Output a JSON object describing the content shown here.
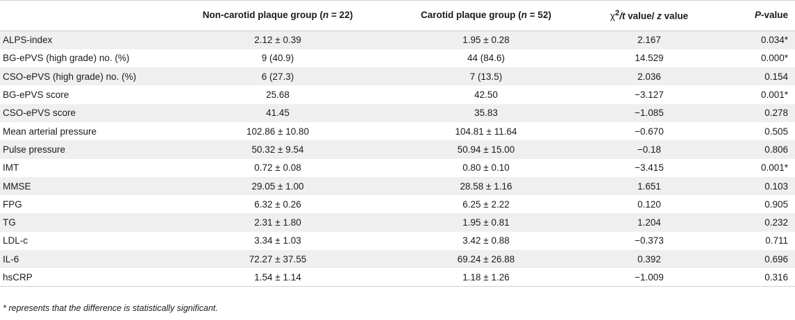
{
  "table": {
    "headers": {
      "col0": "",
      "col1_pre": "Non-carotid plaque group (",
      "col1_n": "n",
      "col1_post": " = 22)",
      "col2_pre": "Carotid plaque group (",
      "col2_n": "n",
      "col2_post": " = 52)",
      "col3_chi": "χ",
      "col3_sup": "2",
      "col3_t": "/t",
      "col3_mid": " value/ ",
      "col3_z": "z",
      "col3_post": " value",
      "col4_p": "P",
      "col4_post": "-value"
    },
    "rows": [
      [
        "ALPS-index",
        "2.12 ± 0.39",
        "1.95 ± 0.28",
        "2.167",
        "0.034*"
      ],
      [
        "BG-ePVS (high grade) no. (%)",
        "9 (40.9)",
        "44 (84.6)",
        "14.529",
        "0.000*"
      ],
      [
        "CSO-ePVS (high grade) no. (%)",
        "6 (27.3)",
        "7 (13.5)",
        "2.036",
        "0.154"
      ],
      [
        "BG-ePVS score",
        "25.68",
        "42.50",
        "−3.127",
        "0.001*"
      ],
      [
        "CSO-ePVS score",
        "41.45",
        "35.83",
        "−1.085",
        "0.278"
      ],
      [
        "Mean arterial pressure",
        "102.86 ± 10.80",
        "104.81 ± 11.64",
        "−0.670",
        "0.505"
      ],
      [
        "Pulse pressure",
        "50.32 ± 9.54",
        "50.94 ± 15.00",
        "−0.18",
        "0.806"
      ],
      [
        "IMT",
        "0.72 ± 0.08",
        "0.80 ± 0.10",
        "−3.415",
        "0.001*"
      ],
      [
        "MMSE",
        "29.05 ± 1.00",
        "28.58 ± 1.16",
        "1.651",
        "0.103"
      ],
      [
        "FPG",
        "6.32 ± 0.26",
        "6.25 ± 2.22",
        "0.120",
        "0.905"
      ],
      [
        "TG",
        "2.31 ± 1.80",
        "1.95 ± 0.81",
        "1.204",
        "0.232"
      ],
      [
        "LDL-c",
        "3.34 ± 1.03",
        "3.42 ± 0.88",
        "−0.373",
        "0.711"
      ],
      [
        "IL-6",
        "72.27 ± 37.55",
        "69.24 ± 26.88",
        "0.392",
        "0.696"
      ],
      [
        "hsCRP",
        "1.54 ± 1.14",
        "1.18 ± 1.26",
        "−1.009",
        "0.316"
      ]
    ]
  },
  "footnote": "* represents that the difference is statistically significant."
}
